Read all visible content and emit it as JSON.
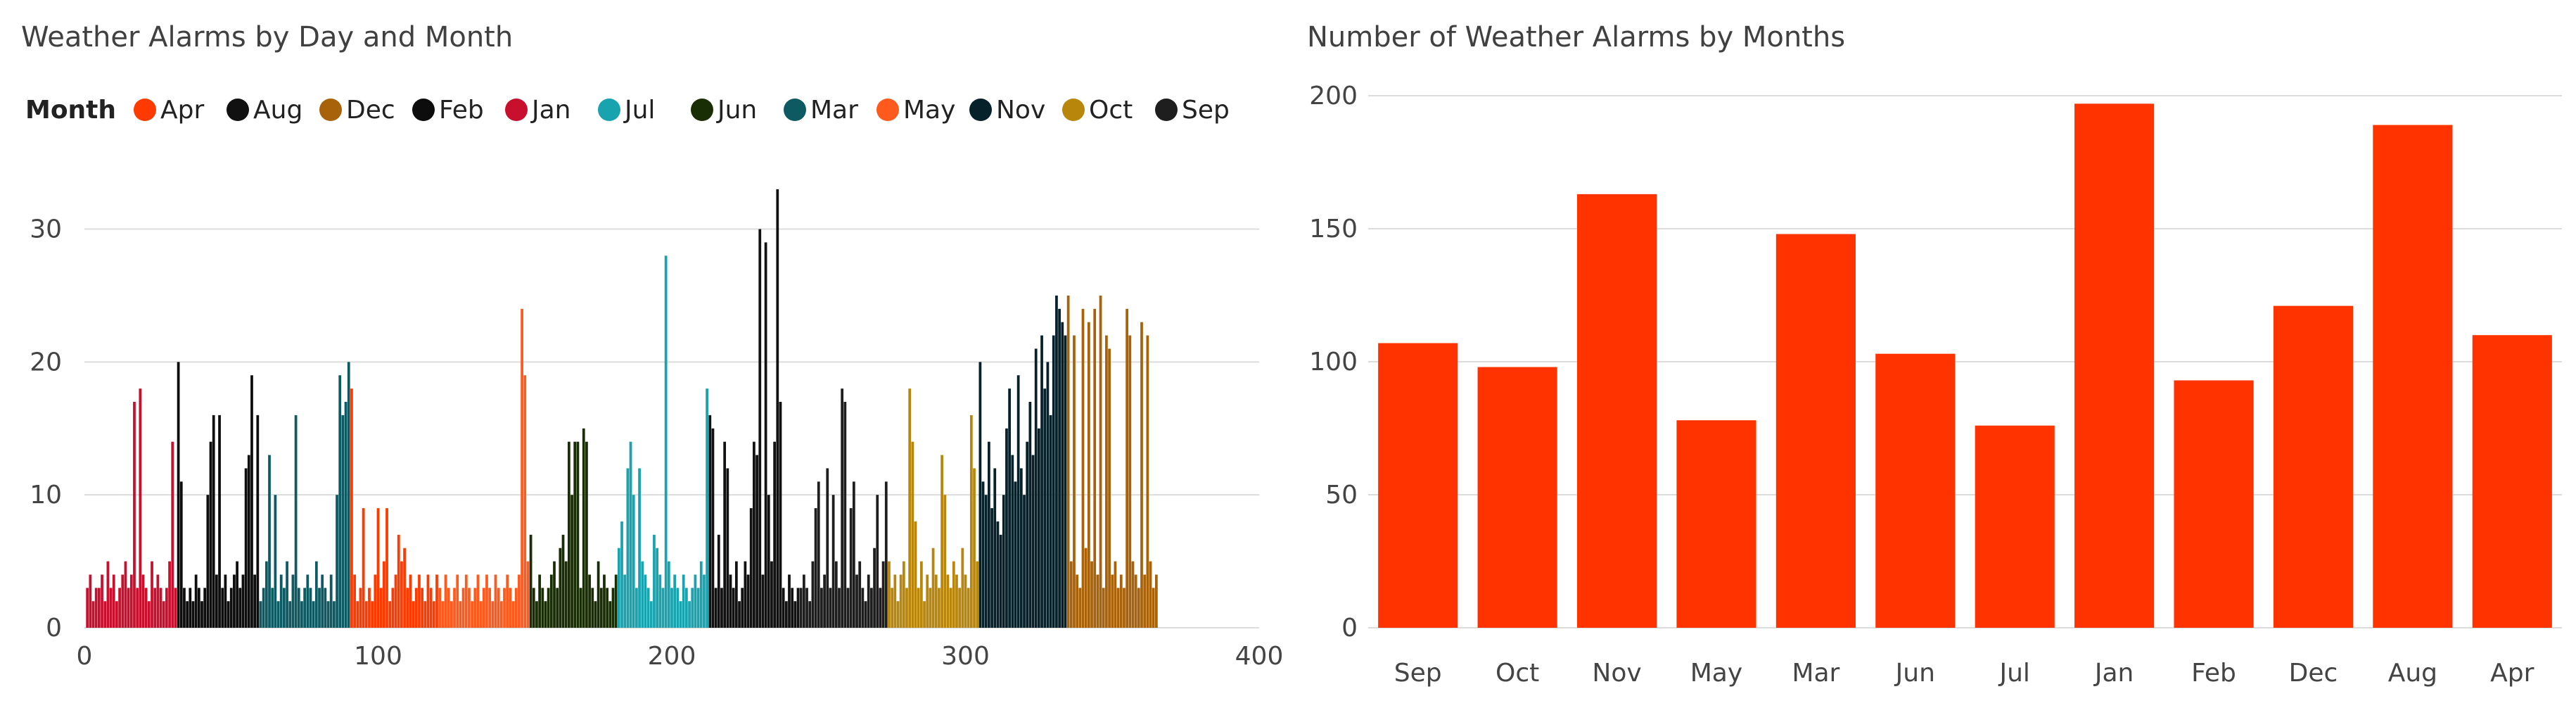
{
  "chart_data": [
    {
      "type": "bar",
      "title": "Weather Alarms by Day and Month",
      "legend": {
        "title": "Month",
        "placement": "top-left",
        "entries": [
          {
            "name": "Apr",
            "color": "#FF3A00"
          },
          {
            "name": "Aug",
            "color": "#111111"
          },
          {
            "name": "Dec",
            "color": "#A8620A"
          },
          {
            "name": "Feb",
            "color": "#0D0D0D"
          },
          {
            "name": "Jan",
            "color": "#C8102E"
          },
          {
            "name": "Jul",
            "color": "#19A3AE"
          },
          {
            "name": "Jun",
            "color": "#1A2E06"
          },
          {
            "name": "Mar",
            "color": "#0E5A63"
          },
          {
            "name": "May",
            "color": "#FF5A1E"
          },
          {
            "name": "Nov",
            "color": "#07212B"
          },
          {
            "name": "Oct",
            "color": "#B8860B"
          },
          {
            "name": "Sep",
            "color": "#1E1E1E"
          }
        ]
      },
      "xlim": [
        0,
        400
      ],
      "ylim": [
        0,
        34
      ],
      "xticks": [
        "0",
        "100",
        "200",
        "300",
        "400"
      ],
      "yticks": [
        "0",
        "10",
        "20",
        "30"
      ],
      "grid": true,
      "series": [
        {
          "month": "Jan",
          "color": "#C8102E",
          "day_start": 1,
          "values": [
            3,
            4,
            2,
            3,
            3,
            4,
            2,
            5,
            3,
            4,
            2,
            3,
            4,
            5,
            3,
            4,
            17,
            3,
            18,
            4,
            3,
            2,
            5,
            3,
            4,
            3,
            2,
            3,
            5,
            14,
            3
          ]
        },
        {
          "month": "Feb",
          "color": "#0D0D0D",
          "day_start": 32,
          "values": [
            20,
            11,
            3,
            2,
            3,
            2,
            4,
            3,
            2,
            3,
            10,
            14,
            16,
            4,
            16,
            3,
            4,
            2,
            3,
            4,
            5,
            3,
            4,
            12,
            13,
            19,
            4,
            16
          ]
        },
        {
          "month": "Mar",
          "color": "#0E5A63",
          "day_start": 60,
          "values": [
            2,
            3,
            5,
            13,
            3,
            10,
            2,
            4,
            3,
            5,
            2,
            4,
            16,
            3,
            2,
            3,
            4,
            3,
            2,
            5,
            3,
            4,
            3,
            2,
            4,
            2,
            10,
            19,
            16,
            17,
            20
          ]
        },
        {
          "month": "Apr",
          "color": "#FF3A00",
          "day_start": 91,
          "values": [
            18,
            4,
            2,
            3,
            9,
            2,
            3,
            2,
            4,
            9,
            3,
            5,
            9,
            2,
            3,
            4,
            7,
            5,
            6,
            3,
            4,
            2,
            3,
            4,
            3,
            2,
            4,
            3,
            2,
            4
          ]
        },
        {
          "month": "May",
          "color": "#FF5A1E",
          "day_start": 121,
          "values": [
            3,
            2,
            4,
            3,
            2,
            3,
            4,
            2,
            3,
            4,
            3,
            2,
            3,
            4,
            2,
            3,
            4,
            3,
            2,
            4,
            3,
            2,
            3,
            4,
            3,
            2,
            3,
            4,
            24,
            19,
            5
          ]
        },
        {
          "month": "Jun",
          "color": "#1A2E06",
          "day_start": 152,
          "values": [
            7,
            3,
            2,
            4,
            3,
            2,
            3,
            4,
            5,
            3,
            6,
            7,
            5,
            14,
            10,
            14,
            14,
            3,
            15,
            14,
            4,
            3,
            2,
            5,
            3,
            4,
            3,
            2,
            3,
            4
          ]
        },
        {
          "month": "Jul",
          "color": "#19A3AE",
          "day_start": 182,
          "values": [
            6,
            8,
            4,
            12,
            14,
            10,
            3,
            12,
            5,
            4,
            3,
            2,
            7,
            6,
            4,
            3,
            28,
            5,
            3,
            4,
            3,
            2,
            4,
            3,
            2,
            3,
            4,
            3,
            5,
            4,
            18
          ]
        },
        {
          "month": "Aug",
          "color": "#111111",
          "day_start": 213,
          "values": [
            16,
            15,
            3,
            7,
            3,
            14,
            12,
            4,
            3,
            5,
            2,
            3,
            5,
            4,
            9,
            14,
            13,
            30,
            4,
            29,
            10,
            5,
            14,
            33,
            17,
            3,
            2,
            4,
            3,
            2,
            3
          ]
        },
        {
          "month": "Sep",
          "color": "#1E1E1E",
          "day_start": 244,
          "values": [
            3,
            4,
            3,
            2,
            5,
            9,
            11,
            3,
            4,
            12,
            3,
            10,
            5,
            3,
            18,
            17,
            3,
            9,
            11,
            4,
            5,
            3,
            2,
            4,
            3,
            6,
            10,
            3,
            5,
            11
          ]
        },
        {
          "month": "Oct",
          "color": "#B8860B",
          "day_start": 274,
          "values": [
            5,
            3,
            4,
            2,
            4,
            5,
            3,
            18,
            14,
            8,
            3,
            5,
            2,
            4,
            3,
            6,
            4,
            3,
            13,
            10,
            4,
            3,
            5,
            4,
            3,
            6,
            4,
            3,
            16,
            12,
            5
          ]
        },
        {
          "month": "Nov",
          "color": "#07212B",
          "day_start": 305,
          "values": [
            20,
            11,
            10,
            14,
            9,
            12,
            8,
            7,
            10,
            15,
            18,
            13,
            11,
            19,
            12,
            10,
            14,
            17,
            13,
            21,
            15,
            22,
            18,
            20,
            16,
            22,
            25,
            24,
            23,
            22
          ]
        },
        {
          "month": "Dec",
          "color": "#A8620A",
          "day_start": 335,
          "values": [
            25,
            5,
            22,
            4,
            3,
            24,
            6,
            23,
            5,
            24,
            4,
            25,
            3,
            22,
            21,
            4,
            5,
            3,
            4,
            3,
            24,
            22,
            5,
            4,
            3,
            23,
            4,
            22,
            5,
            3,
            4
          ]
        }
      ]
    },
    {
      "type": "bar",
      "title": "Number of Weather Alarms by Months",
      "categories": [
        "Sep",
        "Oct",
        "Nov",
        "May",
        "Mar",
        "Jun",
        "Jul",
        "Jan",
        "Feb",
        "Dec",
        "Aug",
        "Apr"
      ],
      "values": [
        107,
        98,
        163,
        78,
        148,
        103,
        76,
        197,
        93,
        121,
        189,
        110
      ],
      "color": "#FF3300",
      "ylim": [
        0,
        200
      ],
      "yticks": [
        "0",
        "50",
        "100",
        "150",
        "200"
      ],
      "grid": true
    }
  ]
}
